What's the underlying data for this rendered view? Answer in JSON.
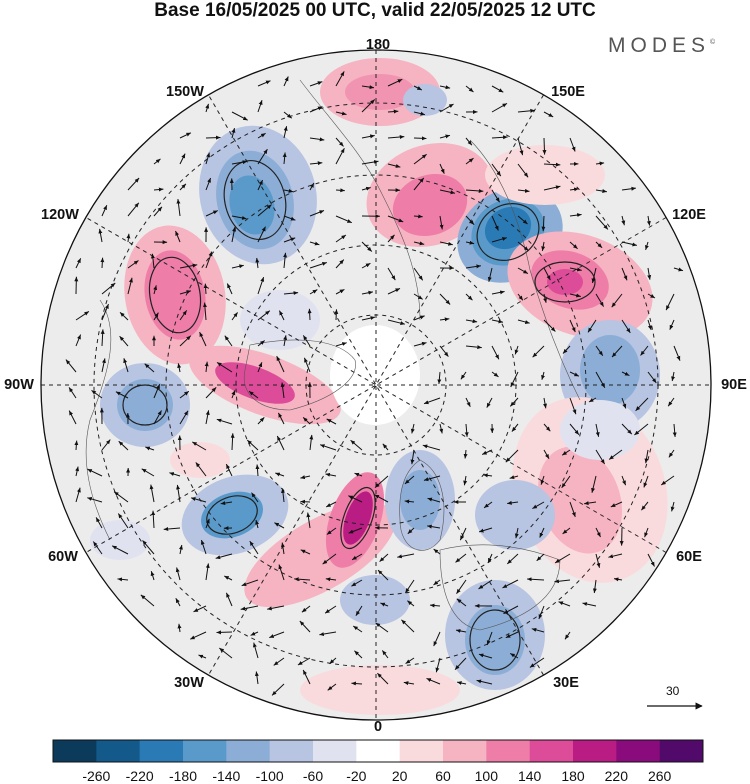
{
  "title": "Base 16/05/2025 00 UTC, valid 22/05/2025 12 UTC",
  "brand": {
    "name": "MODES",
    "mark": "©"
  },
  "longitude_labels": [
    {
      "text": "180",
      "key": "n"
    },
    {
      "text": "150E",
      "key": "ne1"
    },
    {
      "text": "120E",
      "key": "ne2"
    },
    {
      "text": "90E",
      "key": "e"
    },
    {
      "text": "60E",
      "key": "se1"
    },
    {
      "text": "30E",
      "key": "se2"
    },
    {
      "text": "0",
      "key": "s"
    },
    {
      "text": "30W",
      "key": "sw2"
    },
    {
      "text": "60W",
      "key": "sw1"
    },
    {
      "text": "90W",
      "key": "w"
    },
    {
      "text": "120W",
      "key": "nw2"
    },
    {
      "text": "150W",
      "key": "nw1"
    }
  ],
  "reference_vector": {
    "value": "30"
  },
  "colorbar": {
    "ticks": [
      "-260",
      "-220",
      "-180",
      "-140",
      "-100",
      "-60",
      "-20",
      "20",
      "60",
      "100",
      "140",
      "180",
      "220",
      "260"
    ],
    "colors": [
      "#0c3a5a",
      "#13598a",
      "#2a7ab6",
      "#5a9acb",
      "#8caed6",
      "#b7c4e2",
      "#e1e2ef",
      "#ffffff",
      "#fadbdd",
      "#f6b3c1",
      "#ee7ea7",
      "#dd4c99",
      "#b91c83",
      "#8a0b7c",
      "#520a6a"
    ]
  },
  "map": {
    "projection": "north-polar-stereographic",
    "fill_colors": {
      "land_neutral": "#ececec",
      "ocean": "#ffffff"
    }
  }
}
